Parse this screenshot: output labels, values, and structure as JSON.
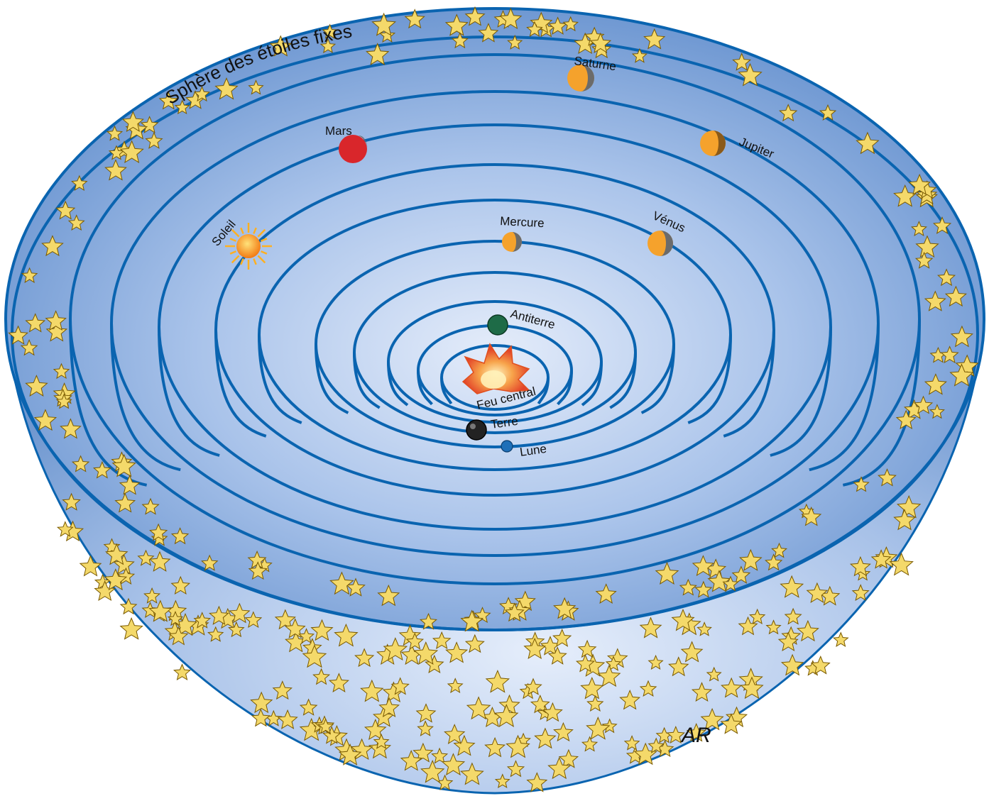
{
  "title": "Sphère des étoiles fixes",
  "signature": "AR",
  "colors": {
    "orbit": "#0a64b0",
    "bowl_outer": "#7fa6d9",
    "bowl_inner": "#c9d9f2",
    "star_fill": "#f4d96a",
    "star_stroke": "#7a5a00"
  },
  "bodies": [
    {
      "key": "saturne",
      "name": "Saturne",
      "color": "#f5a22c",
      "shade": "#6b6b6b"
    },
    {
      "key": "jupiter",
      "name": "Jupiter",
      "color": "#f5a22c",
      "shade": "#8a5a1a"
    },
    {
      "key": "mars",
      "name": "Mars",
      "color": "#d9262b",
      "shade": "#6b6b6b"
    },
    {
      "key": "soleil",
      "name": "Soleil",
      "color": "#f7a11e",
      "shade": "#ffcc33"
    },
    {
      "key": "mercure",
      "name": "Mercure",
      "color": "#f5a22c",
      "shade": "#6b6b6b"
    },
    {
      "key": "venus",
      "name": "Vénus",
      "color": "#f5a22c",
      "shade": "#6b6b6b"
    },
    {
      "key": "antiterre",
      "name": "Antiterre",
      "color": "#1e6b47",
      "shade": "#0c3a24"
    },
    {
      "key": "feu",
      "name": "Feu central",
      "color": "#f08a1c",
      "shade": "#ffe08a"
    },
    {
      "key": "terre",
      "name": "Terre",
      "color": "#222222",
      "shade": "#000000"
    },
    {
      "key": "lune",
      "name": "Lune",
      "color": "#1f6fb8",
      "shade": "#0a3e70"
    }
  ]
}
